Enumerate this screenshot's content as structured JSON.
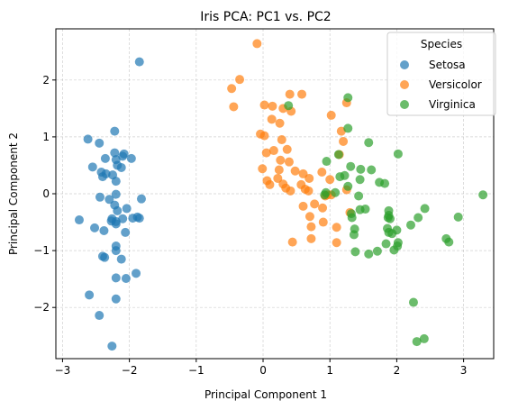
{
  "chart_data": {
    "type": "scatter",
    "title": "Iris PCA: PC1 vs. PC2",
    "xlabel": "Principal Component 1",
    "ylabel": "Principal Component 2",
    "xlim": [
      -3.1,
      3.45
    ],
    "ylim": [
      -2.9,
      2.9
    ],
    "x_ticks": [
      -3,
      -2,
      -1,
      0,
      1,
      2,
      3
    ],
    "y_ticks": [
      -2,
      -1,
      0,
      1,
      2
    ],
    "grid": true,
    "legend": {
      "title": "Species",
      "position": "top-right"
    },
    "series": [
      {
        "name": "Setosa",
        "color": "#1f77b4",
        "points": [
          [
            -1.85,
            2.32
          ],
          [
            -2.22,
            1.1
          ],
          [
            -2.62,
            0.96
          ],
          [
            -2.45,
            0.89
          ],
          [
            -2.22,
            0.72
          ],
          [
            -2.08,
            0.7
          ],
          [
            -2.1,
            0.66
          ],
          [
            -2.2,
            0.6
          ],
          [
            -1.97,
            0.62
          ],
          [
            -2.36,
            0.62
          ],
          [
            -2.55,
            0.47
          ],
          [
            -2.18,
            0.5
          ],
          [
            -2.42,
            0.38
          ],
          [
            -2.35,
            0.35
          ],
          [
            -2.12,
            0.46
          ],
          [
            -2.25,
            0.33
          ],
          [
            -2.2,
            0.22
          ],
          [
            -2.4,
            0.3
          ],
          [
            -2.2,
            -0.01
          ],
          [
            -2.44,
            -0.06
          ],
          [
            -2.3,
            -0.1
          ],
          [
            -1.82,
            -0.09
          ],
          [
            -2.22,
            -0.2
          ],
          [
            -2.04,
            -0.26
          ],
          [
            -2.18,
            -0.3
          ],
          [
            -2.75,
            -0.46
          ],
          [
            -2.26,
            -0.44
          ],
          [
            -2.2,
            -0.49
          ],
          [
            -1.95,
            -0.43
          ],
          [
            -1.88,
            -0.41
          ],
          [
            -2.1,
            -0.44
          ],
          [
            -1.85,
            -0.43
          ],
          [
            -2.27,
            -0.48
          ],
          [
            -2.2,
            -0.53
          ],
          [
            -2.52,
            -0.6
          ],
          [
            -2.38,
            -0.65
          ],
          [
            -2.06,
            -0.68
          ],
          [
            -2.2,
            -0.92
          ],
          [
            -2.2,
            -1.0
          ],
          [
            -2.37,
            -1.12
          ],
          [
            -2.4,
            -1.1
          ],
          [
            -2.12,
            -1.15
          ],
          [
            -2.2,
            -1.48
          ],
          [
            -2.05,
            -1.49
          ],
          [
            -1.9,
            -1.4
          ],
          [
            -2.6,
            -1.78
          ],
          [
            -2.2,
            -1.85
          ],
          [
            -2.45,
            -2.14
          ],
          [
            -2.26,
            -2.68
          ]
        ]
      },
      {
        "name": "Versicolor",
        "color": "#ff7f0e",
        "points": [
          [
            -0.09,
            2.64
          ],
          [
            -0.35,
            2.01
          ],
          [
            -0.47,
            1.85
          ],
          [
            0.4,
            1.75
          ],
          [
            0.58,
            1.75
          ],
          [
            1.25,
            1.6
          ],
          [
            -0.44,
            1.53
          ],
          [
            0.02,
            1.56
          ],
          [
            0.14,
            1.54
          ],
          [
            0.3,
            1.5
          ],
          [
            0.42,
            1.45
          ],
          [
            1.02,
            1.38
          ],
          [
            0.13,
            1.31
          ],
          [
            0.25,
            1.24
          ],
          [
            -0.04,
            1.05
          ],
          [
            0.02,
            1.02
          ],
          [
            1.17,
            1.1
          ],
          [
            0.28,
            0.95
          ],
          [
            1.2,
            0.92
          ],
          [
            0.36,
            0.78
          ],
          [
            0.16,
            0.76
          ],
          [
            0.05,
            0.72
          ],
          [
            1.14,
            0.69
          ],
          [
            0.26,
            0.59
          ],
          [
            0.39,
            0.56
          ],
          [
            -0.01,
            0.44
          ],
          [
            0.24,
            0.42
          ],
          [
            0.48,
            0.4
          ],
          [
            0.88,
            0.38
          ],
          [
            0.6,
            0.35
          ],
          [
            0.69,
            0.27
          ],
          [
            0.22,
            0.27
          ],
          [
            0.06,
            0.23
          ],
          [
            1.0,
            0.25
          ],
          [
            0.3,
            0.17
          ],
          [
            0.1,
            0.16
          ],
          [
            0.57,
            0.16
          ],
          [
            0.34,
            0.1
          ],
          [
            0.63,
            0.08
          ],
          [
            1.25,
            0.07
          ],
          [
            0.41,
            0.05
          ],
          [
            0.68,
            0.05
          ],
          [
            0.93,
            -0.04
          ],
          [
            0.96,
            -0.02
          ],
          [
            1.02,
            -0.02
          ],
          [
            0.77,
            -0.18
          ],
          [
            0.6,
            -0.22
          ],
          [
            0.89,
            -0.25
          ],
          [
            1.3,
            -0.33
          ],
          [
            0.7,
            -0.4
          ],
          [
            0.9,
            -0.5
          ],
          [
            0.72,
            -0.58
          ],
          [
            1.1,
            -0.59
          ],
          [
            0.72,
            -0.79
          ],
          [
            0.44,
            -0.85
          ],
          [
            1.1,
            -0.86
          ]
        ]
      },
      {
        "name": "Virginica",
        "color": "#2ca02c",
        "points": [
          [
            1.27,
            1.69
          ],
          [
            0.38,
            1.55
          ],
          [
            1.27,
            1.15
          ],
          [
            1.58,
            0.9
          ],
          [
            2.02,
            0.7
          ],
          [
            1.13,
            0.69
          ],
          [
            0.95,
            0.57
          ],
          [
            1.31,
            0.48
          ],
          [
            1.46,
            0.43
          ],
          [
            1.62,
            0.42
          ],
          [
            1.15,
            0.3
          ],
          [
            1.22,
            0.32
          ],
          [
            1.45,
            0.25
          ],
          [
            1.74,
            0.2
          ],
          [
            1.82,
            0.18
          ],
          [
            1.27,
            0.13
          ],
          [
            1.08,
            0.02
          ],
          [
            0.92,
            -0.02
          ],
          [
            3.29,
            -0.02
          ],
          [
            0.94,
            0.02
          ],
          [
            1.43,
            -0.04
          ],
          [
            1.88,
            -0.3
          ],
          [
            2.42,
            -0.26
          ],
          [
            1.53,
            -0.27
          ],
          [
            1.45,
            -0.28
          ],
          [
            1.32,
            -0.35
          ],
          [
            1.88,
            -0.38
          ],
          [
            1.87,
            -0.42
          ],
          [
            1.33,
            -0.42
          ],
          [
            2.32,
            -0.42
          ],
          [
            2.92,
            -0.41
          ],
          [
            1.9,
            -0.44
          ],
          [
            2.21,
            -0.55
          ],
          [
            1.86,
            -0.61
          ],
          [
            1.37,
            -0.62
          ],
          [
            2.0,
            -0.64
          ],
          [
            1.88,
            -0.68
          ],
          [
            1.93,
            -0.7
          ],
          [
            1.36,
            -0.72
          ],
          [
            2.74,
            -0.79
          ],
          [
            2.78,
            -0.85
          ],
          [
            2.02,
            -0.86
          ],
          [
            1.84,
            -0.88
          ],
          [
            2.01,
            -0.92
          ],
          [
            1.96,
            -0.99
          ],
          [
            1.71,
            -1.01
          ],
          [
            1.38,
            -1.02
          ],
          [
            1.58,
            -1.06
          ],
          [
            2.25,
            -1.91
          ],
          [
            2.41,
            -2.55
          ],
          [
            2.3,
            -2.6
          ]
        ]
      }
    ]
  }
}
